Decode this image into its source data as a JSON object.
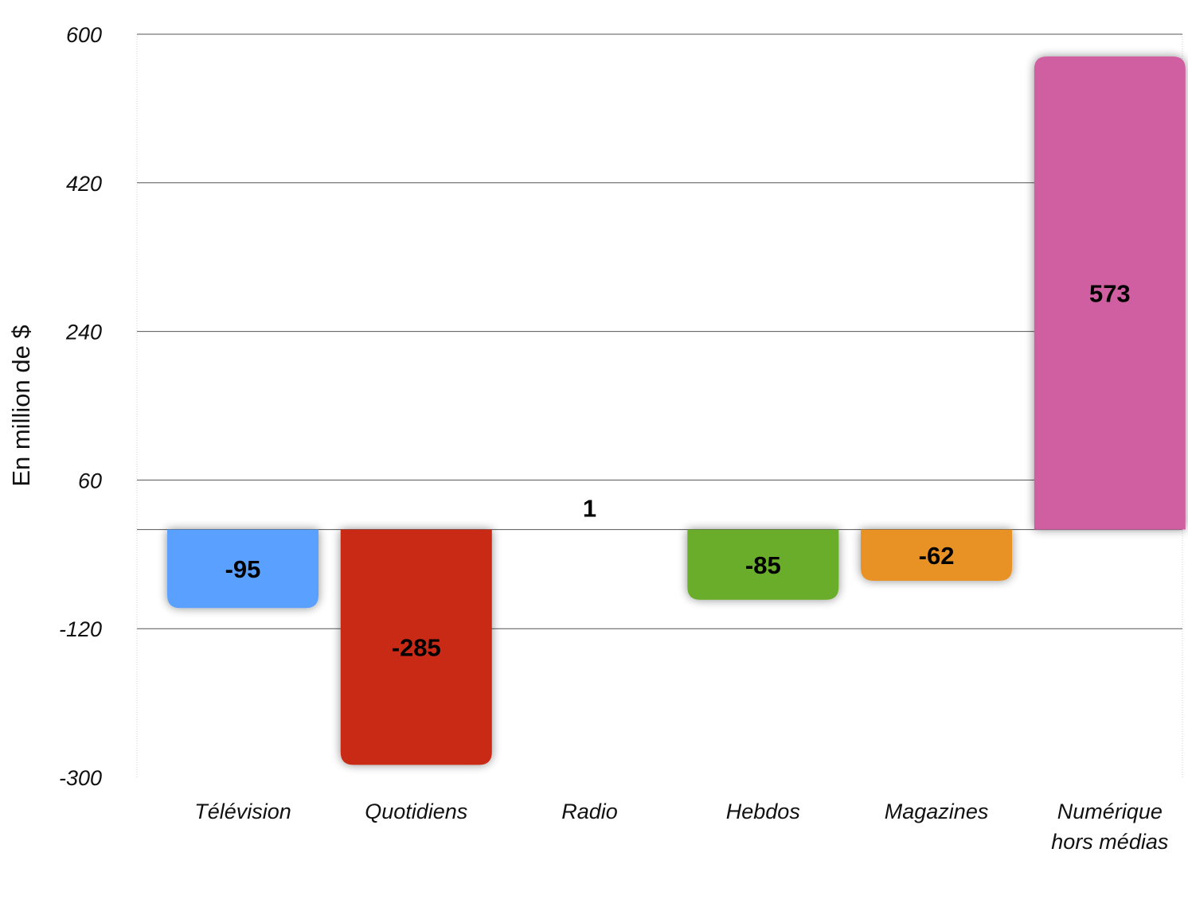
{
  "chart_data": {
    "type": "bar",
    "title": "",
    "xlabel": "",
    "ylabel": "En million de $",
    "ylim": [
      -300,
      600
    ],
    "yticks": [
      600,
      420,
      240,
      60,
      -120,
      -300
    ],
    "categories": [
      [
        "Télévision"
      ],
      [
        "Quotidiens"
      ],
      [
        "Radio"
      ],
      [
        "Hebdos"
      ],
      [
        "Magazines"
      ],
      [
        "Numérique",
        "hors médias"
      ]
    ],
    "values": [
      -95,
      -285,
      1,
      -85,
      -62,
      573
    ],
    "value_labels": [
      "-95",
      "-285",
      "1",
      "-85",
      "-62",
      "573"
    ],
    "colors": [
      "#5aa1ff",
      "#c92914",
      "#999999",
      "#6aad2a",
      "#e89226",
      "#d05fa2"
    ],
    "grid": true,
    "legend": "none"
  }
}
